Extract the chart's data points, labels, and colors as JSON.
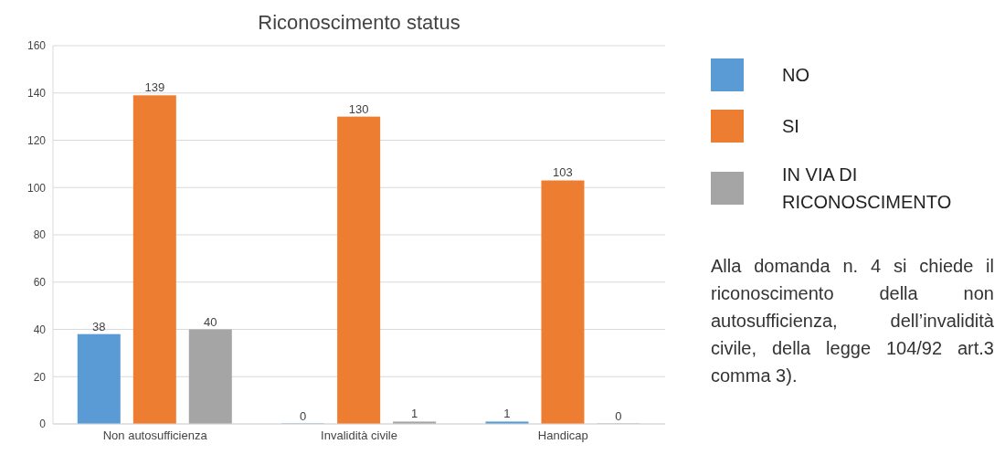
{
  "chart_data": {
    "type": "bar",
    "title": "Riconoscimento status",
    "categories": [
      "Non autosufficienza",
      "Invalidità civile",
      "Handicap"
    ],
    "series": [
      {
        "name": "NO",
        "color": "#5b9bd5",
        "values": [
          38,
          0,
          1
        ]
      },
      {
        "name": "SI",
        "color": "#ed7d31",
        "values": [
          139,
          130,
          103
        ]
      },
      {
        "name": "IN VIA DI RICONOSCIMENTO",
        "color": "#a5a5a5",
        "values": [
          40,
          1,
          0
        ]
      }
    ],
    "ylim": [
      0,
      160
    ],
    "yticks": [
      0,
      20,
      40,
      60,
      80,
      100,
      120,
      140,
      160
    ],
    "grid": "y",
    "legend": "right",
    "data_labels": true,
    "annotations": [
      "Alla domanda n. 4 si chiede il riconoscimento della non autosufficienza, dell’invalidità civile, della legge 104/92 art.3 comma 3)."
    ]
  }
}
